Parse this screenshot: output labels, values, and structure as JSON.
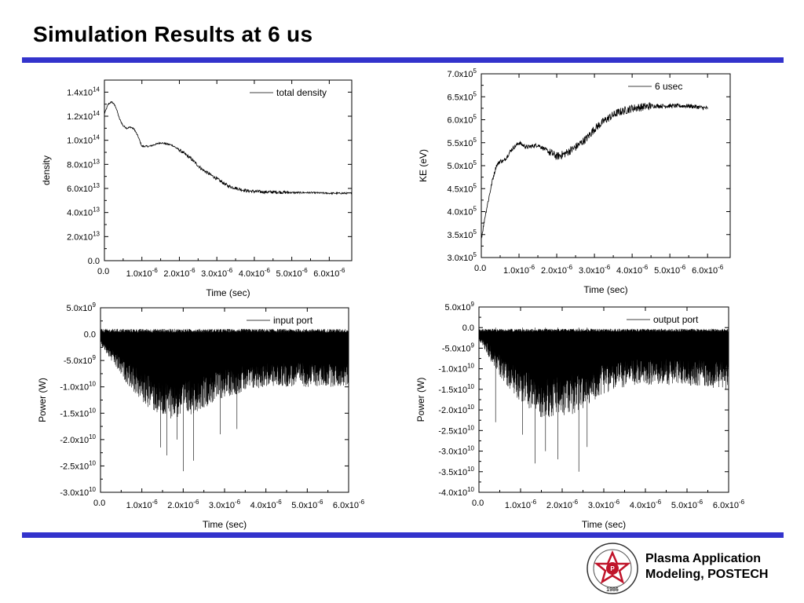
{
  "page": {
    "title": "Simulation Results at 6 us",
    "footer_line1": "Plasma Application",
    "footer_line2": "Modeling, POSTECH",
    "logo_text_outer": "POHANG UNIVERSITY OF SCIENCE AND TECHNOLOGY",
    "logo_year": "1986",
    "accent_color": "#3333cc"
  },
  "chart_data": [
    {
      "type": "line",
      "xlabel": "Time (sec)",
      "ylabel": "density",
      "legend": "total density",
      "legend_placement": "top-right",
      "xlim": [
        0,
        6.6e-06
      ],
      "ylim": [
        0,
        150000000000000.0
      ],
      "xticks": [
        {
          "v": 0,
          "m": "0.0",
          "e": ""
        },
        {
          "v": 1e-06,
          "m": "1.0x10",
          "e": "-6"
        },
        {
          "v": 2e-06,
          "m": "2.0x10",
          "e": "-6"
        },
        {
          "v": 3e-06,
          "m": "3.0x10",
          "e": "-6"
        },
        {
          "v": 4e-06,
          "m": "4.0x10",
          "e": "-6"
        },
        {
          "v": 5e-06,
          "m": "5.0x10",
          "e": "-6"
        },
        {
          "v": 6e-06,
          "m": "6.0x10",
          "e": "-6"
        }
      ],
      "yticks": [
        {
          "v": 0,
          "m": "0.0",
          "e": ""
        },
        {
          "v": 20000000000000.0,
          "m": "2.0x10",
          "e": "13"
        },
        {
          "v": 40000000000000.0,
          "m": "4.0x10",
          "e": "13"
        },
        {
          "v": 60000000000000.0,
          "m": "6.0x10",
          "e": "13"
        },
        {
          "v": 80000000000000.0,
          "m": "8.0x10",
          "e": "13"
        },
        {
          "v": 100000000000000.0,
          "m": "1.0x10",
          "e": "14"
        },
        {
          "v": 120000000000000.0,
          "m": "1.2x10",
          "e": "14"
        },
        {
          "v": 140000000000000.0,
          "m": "1.4x10",
          "e": "14"
        }
      ],
      "series": [
        {
          "name": "total density",
          "x": [
            0,
            1e-07,
            2e-07,
            3e-07,
            4e-07,
            5e-07,
            6e-07,
            7e-07,
            8e-07,
            9e-07,
            1e-06,
            1.2e-06,
            1.5e-06,
            1.8e-06,
            2e-06,
            2.3e-06,
            2.6e-06,
            3e-06,
            3.3e-06,
            3.6e-06,
            3.8e-06,
            4e-06,
            4.3e-06,
            4.6e-06,
            5e-06,
            5.5e-06,
            6e-06,
            6.6e-06
          ],
          "y": [
            122000000000000.0,
            130000000000000.0,
            132000000000000.0,
            128000000000000.0,
            118000000000000.0,
            112000000000000.0,
            110000000000000.0,
            111000000000000.0,
            109000000000000.0,
            103000000000000.0,
            95000000000000.0,
            95000000000000.0,
            98000000000000.0,
            96000000000000.0,
            92000000000000.0,
            85000000000000.0,
            76000000000000.0,
            68000000000000.0,
            62000000000000.0,
            59500000000000.0,
            58000000000000.0,
            57500000000000.0,
            57000000000000.0,
            57000000000000.0,
            56500000000000.0,
            56500000000000.0,
            56000000000000.0,
            56000000000000.0
          ],
          "noise": 0.018
        }
      ]
    },
    {
      "type": "line",
      "xlabel": "Time (sec)",
      "ylabel": "KE (eV)",
      "legend": "6 usec",
      "legend_placement": "top-right",
      "xlim": [
        0,
        6.6e-06
      ],
      "ylim": [
        300000.0,
        700000.0
      ],
      "xticks": [
        {
          "v": 0,
          "m": "0.0",
          "e": ""
        },
        {
          "v": 1e-06,
          "m": "1.0x10",
          "e": "-6"
        },
        {
          "v": 2e-06,
          "m": "2.0x10",
          "e": "-6"
        },
        {
          "v": 3e-06,
          "m": "3.0x10",
          "e": "-6"
        },
        {
          "v": 4e-06,
          "m": "4.0x10",
          "e": "-6"
        },
        {
          "v": 5e-06,
          "m": "5.0x10",
          "e": "-6"
        },
        {
          "v": 6e-06,
          "m": "6.0x10",
          "e": "-6"
        }
      ],
      "yticks": [
        {
          "v": 300000.0,
          "m": "3.0x10",
          "e": "5"
        },
        {
          "v": 350000.0,
          "m": "3.5x10",
          "e": "5"
        },
        {
          "v": 400000.0,
          "m": "4.0x10",
          "e": "5"
        },
        {
          "v": 450000.0,
          "m": "4.5x10",
          "e": "5"
        },
        {
          "v": 500000.0,
          "m": "5.0x10",
          "e": "5"
        },
        {
          "v": 550000.0,
          "m": "5.5x10",
          "e": "5"
        },
        {
          "v": 600000.0,
          "m": "6.0x10",
          "e": "5"
        },
        {
          "v": 650000.0,
          "m": "6.5x10",
          "e": "5"
        },
        {
          "v": 700000.0,
          "m": "7.0x10",
          "e": "5"
        }
      ],
      "series": [
        {
          "name": "6 usec",
          "x": [
            0,
            1e-07,
            2e-07,
            3e-07,
            4e-07,
            5e-07,
            6e-07,
            8e-07,
            1e-06,
            1.2e-06,
            1.5e-06,
            1.8e-06,
            2e-06,
            2.2e-06,
            2.5e-06,
            2.8e-06,
            3e-06,
            3.3e-06,
            3.6e-06,
            4e-06,
            4.5e-06,
            5e-06,
            5.5e-06,
            6e-06
          ],
          "y": [
            340000.0,
            390000.0,
            430000.0,
            470000.0,
            500000.0,
            510000.0,
            510000.0,
            535000.0,
            550000.0,
            540000.0,
            545000.0,
            530000.0,
            520000.0,
            525000.0,
            540000.0,
            560000.0,
            580000.0,
            600000.0,
            615000.0,
            625000.0,
            630000.0,
            630000.0,
            630000.0,
            625000.0
          ],
          "noise": 0.045
        }
      ]
    },
    {
      "type": "line",
      "xlabel": "Time (sec)",
      "ylabel": "Power (W)",
      "legend": "input port",
      "legend_placement": "top-right",
      "xlim": [
        0,
        6e-06
      ],
      "ylim": [
        -30000000000.0,
        5000000000.0
      ],
      "xticks": [
        {
          "v": 0,
          "m": "0.0",
          "e": ""
        },
        {
          "v": 1e-06,
          "m": "1.0x10",
          "e": "-6"
        },
        {
          "v": 2e-06,
          "m": "2.0x10",
          "e": "-6"
        },
        {
          "v": 3e-06,
          "m": "3.0x10",
          "e": "-6"
        },
        {
          "v": 4e-06,
          "m": "4.0x10",
          "e": "-6"
        },
        {
          "v": 5e-06,
          "m": "5.0x10",
          "e": "-6"
        },
        {
          "v": 6e-06,
          "m": "6.0x10",
          "e": "-6"
        }
      ],
      "yticks": [
        {
          "v": 5000000000.0,
          "m": "5.0x10",
          "e": "9"
        },
        {
          "v": 0,
          "m": "0.0",
          "e": ""
        },
        {
          "v": -5000000000.0,
          "m": "-5.0x10",
          "e": "9"
        },
        {
          "v": -10000000000.0,
          "m": "-1.0x10",
          "e": "10"
        },
        {
          "v": -15000000000.0,
          "m": "-1.5x10",
          "e": "10"
        },
        {
          "v": -20000000000.0,
          "m": "-2.0x10",
          "e": "10"
        },
        {
          "v": -25000000000.0,
          "m": "-2.5x10",
          "e": "10"
        },
        {
          "v": -30000000000.0,
          "m": "-3.0x10",
          "e": "10"
        }
      ],
      "series": [
        {
          "name": "input port",
          "kind": "oscillation",
          "upper": 1000000000.0,
          "envelope_x": [
            0,
            5e-07,
            1e-06,
            1.5e-06,
            2e-06,
            2.5e-06,
            3e-06,
            4e-06,
            5e-06,
            6e-06
          ],
          "envelope_y": [
            -2000000000.0,
            -8000000000.0,
            -13000000000.0,
            -16000000000.0,
            -16000000000.0,
            -14000000000.0,
            -12000000000.0,
            -10000000000.0,
            -10000000000.0,
            -10000000000.0
          ],
          "spikes": [
            [
              2e-06,
              -26000000000.0
            ],
            [
              1.6e-06,
              -23000000000.0
            ],
            [
              2.25e-06,
              -24000000000.0
            ],
            [
              1.45e-06,
              -21500000000.0
            ],
            [
              1.85e-06,
              -20000000000.0
            ],
            [
              2.9e-06,
              -19000000000.0
            ],
            [
              3.3e-06,
              -18000000000.0
            ]
          ]
        }
      ]
    },
    {
      "type": "line",
      "xlabel": "Time (sec)",
      "ylabel": "Power (W)",
      "legend": "output port",
      "legend_placement": "top-right",
      "xlim": [
        0,
        6e-06
      ],
      "ylim": [
        -40000000000.0,
        5000000000.0
      ],
      "xticks": [
        {
          "v": 0,
          "m": "0.0",
          "e": ""
        },
        {
          "v": 1e-06,
          "m": "1.0x10",
          "e": "-6"
        },
        {
          "v": 2e-06,
          "m": "2.0x10",
          "e": "-6"
        },
        {
          "v": 3e-06,
          "m": "3.0x10",
          "e": "-6"
        },
        {
          "v": 4e-06,
          "m": "4.0x10",
          "e": "-6"
        },
        {
          "v": 5e-06,
          "m": "5.0x10",
          "e": "-6"
        },
        {
          "v": 6e-06,
          "m": "6.0x10",
          "e": "-6"
        }
      ],
      "yticks": [
        {
          "v": 5000000000.0,
          "m": "5.0x10",
          "e": "9"
        },
        {
          "v": 0,
          "m": "0.0",
          "e": ""
        },
        {
          "v": -5000000000.0,
          "m": "-5.0x10",
          "e": "9"
        },
        {
          "v": -10000000000.0,
          "m": "-1.0x10",
          "e": "10"
        },
        {
          "v": -15000000000.0,
          "m": "-1.5x10",
          "e": "10"
        },
        {
          "v": -20000000000.0,
          "m": "-2.0x10",
          "e": "10"
        },
        {
          "v": -25000000000.0,
          "m": "-2.5x10",
          "e": "10"
        },
        {
          "v": -30000000000.0,
          "m": "-3.0x10",
          "e": "10"
        },
        {
          "v": -35000000000.0,
          "m": "-3.5x10",
          "e": "10"
        },
        {
          "v": -40000000000.0,
          "m": "-4.0x10",
          "e": "10"
        }
      ],
      "series": [
        {
          "name": "output port",
          "kind": "oscillation",
          "upper": -1000000000.0,
          "envelope_x": [
            0,
            5e-07,
            1e-06,
            1.5e-06,
            2e-06,
            2.5e-06,
            3e-06,
            3.5e-06,
            4e-06,
            5e-06,
            6e-06
          ],
          "envelope_y": [
            -3000000000.0,
            -12000000000.0,
            -18000000000.0,
            -22000000000.0,
            -22000000000.0,
            -20000000000.0,
            -16000000000.0,
            -14500000000.0,
            -14000000000.0,
            -14000000000.0,
            -15000000000.0
          ],
          "spikes": [
            [
              2.4e-06,
              -35000000000.0
            ],
            [
              1.35e-06,
              -33000000000.0
            ],
            [
              1.9e-06,
              -32000000000.0
            ],
            [
              1.6e-06,
              -30000000000.0
            ],
            [
              2.6e-06,
              -29000000000.0
            ],
            [
              1.05e-06,
              -26000000000.0
            ],
            [
              4e-07,
              -23000000000.0
            ]
          ]
        }
      ]
    }
  ]
}
